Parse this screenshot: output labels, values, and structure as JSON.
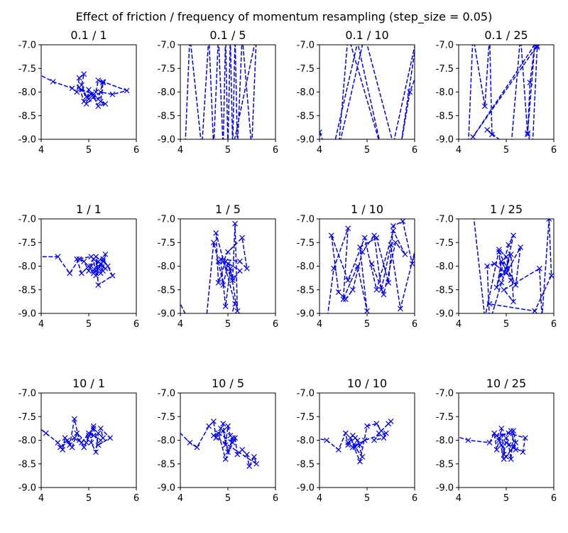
{
  "figure": {
    "title": "Effect of friction / frequency of momentum resampling (step_size = 0.05)"
  },
  "colors": {
    "series": "#0000ff",
    "axes": "#000000",
    "background": "#ffffff"
  },
  "chart_data": [
    {
      "type": "line",
      "title": "0.1 / 1",
      "marker": "x",
      "linestyle": "dashed",
      "xlim": [
        4,
        6
      ],
      "ylim": [
        -9.0,
        -7.0
      ],
      "xticks": [
        "4",
        "5",
        "6"
      ],
      "yticks": [
        "-9.0",
        "-8.5",
        "-8.0",
        "-7.5",
        "-7.0"
      ],
      "x": [
        3.9,
        4.25,
        4.65,
        4.75,
        4.8,
        4.9,
        4.85,
        4.95,
        5.05,
        4.9,
        4.8,
        5.0,
        5.15,
        5.2,
        5.3,
        5.25,
        5.35,
        5.2,
        5.1,
        5.0,
        4.95,
        5.25,
        5.5,
        5.8,
        5.3,
        5.2,
        5.1,
        4.85
      ],
      "y": [
        -7.6,
        -7.78,
        -7.92,
        -8.0,
        -7.7,
        -7.62,
        -7.85,
        -8.1,
        -8.05,
        -8.2,
        -7.9,
        -8.15,
        -8.0,
        -7.75,
        -7.8,
        -8.2,
        -8.25,
        -8.3,
        -8.1,
        -7.95,
        -8.25,
        -8.0,
        -8.05,
        -7.97,
        -7.78,
        -8.15,
        -8.05,
        -7.95
      ]
    },
    {
      "type": "line",
      "title": "0.1 / 5",
      "marker": "x",
      "linestyle": "dashed",
      "xlim": [
        4,
        6
      ],
      "ylim": [
        -9.0,
        -7.0
      ],
      "xticks": [
        "4",
        "5",
        "6"
      ],
      "yticks": [
        "-9.0",
        "-8.5",
        "-8.0",
        "-7.5",
        "-7.0"
      ],
      "x": [
        4.1,
        4.2,
        4.45,
        4.6,
        4.7,
        4.8,
        4.9,
        4.95,
        5.0,
        5.05,
        5.1,
        5.15,
        5.2,
        5.3,
        5.5,
        5.6,
        5.1
      ],
      "y": [
        -9.2,
        -6.8,
        -9.2,
        -6.8,
        -9.2,
        -6.8,
        -9.2,
        -6.8,
        -9.2,
        -6.8,
        -9.2,
        -6.8,
        -9.2,
        -6.8,
        -9.2,
        -6.8,
        -9.2
      ]
    },
    {
      "type": "line",
      "title": "0.1 / 10",
      "marker": "x",
      "linestyle": "dashed",
      "xlim": [
        4,
        6
      ],
      "ylim": [
        -9.0,
        -7.0
      ],
      "xticks": [
        "4",
        "5",
        "6"
      ],
      "yticks": [
        "-9.0",
        "-8.5",
        "-8.0",
        "-7.5",
        "-7.0"
      ],
      "x": [
        4.0,
        4.1,
        4.3,
        4.8,
        5.3,
        4.6,
        4.4,
        4.95,
        5.55,
        6.05,
        5.7,
        5.9,
        6.3
      ],
      "y": [
        -8.85,
        -9.1,
        -9.15,
        -6.95,
        -9.2,
        -6.8,
        -9.2,
        -6.8,
        -9.1,
        -6.8,
        -9.2,
        -8.0,
        -6.9
      ]
    },
    {
      "type": "line",
      "title": "0.1 / 25",
      "marker": "x",
      "linestyle": "dashed",
      "xlim": [
        4,
        6
      ],
      "ylim": [
        -9.0,
        -7.0
      ],
      "xticks": [
        "4",
        "5",
        "6"
      ],
      "yticks": [
        "-9.0",
        "-8.5",
        "-8.0",
        "-7.5",
        "-7.0"
      ],
      "x": [
        4.2,
        4.3,
        4.55,
        4.65,
        4.7,
        4.6,
        5.1,
        5.3,
        5.45,
        5.5,
        5.6,
        5.65,
        5.55,
        5.45,
        5.6,
        4.3,
        5.65
      ],
      "y": [
        -9.2,
        -6.8,
        -8.3,
        -6.8,
        -8.9,
        -8.8,
        -9.2,
        -6.8,
        -8.9,
        -7.8,
        -7.0,
        -7.05,
        -9.2,
        -8.87,
        -7.0,
        -8.95,
        -7.02
      ]
    },
    {
      "type": "line",
      "title": "1 / 1",
      "marker": "x",
      "linestyle": "dashed",
      "xlim": [
        4,
        6
      ],
      "ylim": [
        -9.0,
        -7.0
      ],
      "xticks": [
        "4",
        "5",
        "6"
      ],
      "yticks": [
        "-9.0",
        "-8.5",
        "-8.0",
        "-7.5",
        "-7.0"
      ],
      "x": [
        3.9,
        4.35,
        4.6,
        4.8,
        4.9,
        5.0,
        5.05,
        5.1,
        5.15,
        5.2,
        5.25,
        5.3,
        5.35,
        5.2,
        5.1,
        5.25,
        5.3,
        5.4,
        5.5,
        5.2,
        5.15,
        5.3,
        5.2,
        5.1,
        5.0,
        4.85,
        4.75,
        5.05,
        5.35,
        5.25,
        5.2
      ],
      "y": [
        -7.8,
        -7.8,
        -8.15,
        -7.85,
        -7.9,
        -8.1,
        -8.0,
        -7.85,
        -8.2,
        -8.05,
        -7.95,
        -8.1,
        -7.75,
        -7.9,
        -8.1,
        -8.15,
        -7.85,
        -8.0,
        -8.2,
        -8.4,
        -7.8,
        -7.9,
        -8.05,
        -8.15,
        -8.0,
        -8.15,
        -7.85,
        -7.8,
        -8.05,
        -7.95,
        -8.0
      ]
    },
    {
      "type": "line",
      "title": "1 / 5",
      "marker": "x",
      "linestyle": "dashed",
      "xlim": [
        4,
        6
      ],
      "ylim": [
        -9.0,
        -7.0
      ],
      "xticks": [
        "4",
        "5",
        "6"
      ],
      "yticks": [
        "-9.0",
        "-8.5",
        "-8.0",
        "-7.5",
        "-7.0"
      ],
      "x": [
        3.95,
        4.2,
        4.55,
        4.7,
        4.8,
        4.9,
        5.0,
        5.1,
        5.15,
        5.2,
        5.05,
        4.95,
        4.85,
        5.25,
        5.4,
        5.3,
        5.0,
        4.9,
        5.1,
        5.25,
        4.95,
        4.8,
        4.75,
        5.15,
        5.05
      ],
      "y": [
        -8.7,
        -9.2,
        -9.1,
        -7.5,
        -7.9,
        -8.4,
        -7.95,
        -8.25,
        -7.1,
        -8.95,
        -8.05,
        -8.85,
        -7.85,
        -7.9,
        -8.05,
        -7.4,
        -7.7,
        -7.9,
        -8.3,
        -8.1,
        -7.9,
        -8.35,
        -7.3,
        -8.8,
        -9.1
      ]
    },
    {
      "type": "line",
      "title": "1 / 10",
      "marker": "x",
      "linestyle": "dashed",
      "xlim": [
        4,
        6
      ],
      "ylim": [
        -9.0,
        -7.0
      ],
      "xticks": [
        "4",
        "5",
        "6"
      ],
      "yticks": [
        "-9.0",
        "-8.5",
        "-8.0",
        "-7.5",
        "-7.0"
      ],
      "x": [
        4.15,
        4.3,
        4.6,
        4.5,
        4.8,
        5.0,
        4.85,
        5.2,
        5.45,
        5.55,
        5.75,
        5.95,
        6.1,
        5.7,
        5.5,
        5.3,
        5.15,
        4.9,
        4.7,
        4.55,
        4.4,
        4.25,
        4.6,
        4.95,
        5.2,
        5.55,
        5.8,
        5.6,
        5.35,
        5.1
      ],
      "y": [
        -9.2,
        -8.05,
        -7.2,
        -8.7,
        -8.0,
        -8.95,
        -7.6,
        -7.4,
        -8.35,
        -7.15,
        -7.05,
        -7.95,
        -7.3,
        -8.9,
        -7.55,
        -8.5,
        -7.35,
        -7.7,
        -8.5,
        -8.7,
        -8.55,
        -7.35,
        -8.3,
        -7.4,
        -8.5,
        -7.25,
        -7.75,
        -7.5,
        -8.6,
        -7.95
      ]
    },
    {
      "type": "line",
      "title": "1 / 25",
      "marker": "x",
      "linestyle": "dashed",
      "xlim": [
        4,
        6
      ],
      "ylim": [
        -9.0,
        -7.0
      ],
      "xticks": [
        "4",
        "5",
        "6"
      ],
      "yticks": [
        "-9.0",
        "-8.5",
        "-8.0",
        "-7.5",
        "-7.0"
      ],
      "x": [
        4.3,
        4.55,
        4.85,
        5.0,
        5.1,
        4.9,
        4.8,
        5.05,
        5.15,
        5.0,
        4.9,
        4.85,
        5.2,
        5.3,
        5.0,
        4.75,
        4.6,
        4.65,
        4.9,
        5.1,
        5.15,
        4.95,
        5.7,
        5.75,
        5.9,
        5.95,
        5.6,
        4.65
      ],
      "y": [
        -6.8,
        -9.1,
        -7.65,
        -7.8,
        -8.3,
        -7.9,
        -8.45,
        -7.55,
        -7.35,
        -8.05,
        -8.2,
        -7.7,
        -8.4,
        -7.6,
        -8.15,
        -7.95,
        -8.0,
        -9.2,
        -8.35,
        -7.75,
        -8.75,
        -8.5,
        -8.05,
        -9.1,
        -7.0,
        -8.2,
        -8.95,
        -8.8
      ]
    },
    {
      "type": "line",
      "title": "10 / 1",
      "marker": "x",
      "linestyle": "dashed",
      "xlim": [
        4,
        6
      ],
      "ylim": [
        -9.0,
        -7.0
      ],
      "xticks": [
        "4",
        "5",
        "6"
      ],
      "yticks": [
        "-9.0",
        "-8.5",
        "-8.0",
        "-7.5",
        "-7.0"
      ],
      "x": [
        3.9,
        4.1,
        4.35,
        4.45,
        4.5,
        4.6,
        4.7,
        4.8,
        4.9,
        5.0,
        5.1,
        5.05,
        5.15,
        5.2,
        5.3,
        5.25,
        5.45,
        5.2,
        5.1,
        4.95,
        4.75,
        4.65,
        4.55,
        4.4,
        4.7,
        4.85,
        5.0,
        5.1,
        5.25
      ],
      "y": [
        -7.7,
        -7.85,
        -8.05,
        -8.2,
        -7.95,
        -8.1,
        -7.55,
        -8.0,
        -8.15,
        -7.9,
        -7.75,
        -8.05,
        -8.25,
        -7.85,
        -7.95,
        -7.75,
        -7.95,
        -8.1,
        -7.7,
        -8.05,
        -7.85,
        -8.15,
        -8.0,
        -8.15,
        -7.95,
        -8.05,
        -7.85,
        -7.9,
        -8.0
      ]
    },
    {
      "type": "line",
      "title": "10 / 5",
      "marker": "x",
      "linestyle": "dashed",
      "xlim": [
        4,
        6
      ],
      "ylim": [
        -9.0,
        -7.0
      ],
      "xticks": [
        "4",
        "5",
        "6"
      ],
      "yticks": [
        "-9.0",
        "-8.5",
        "-8.0",
        "-7.5",
        "-7.0"
      ],
      "x": [
        3.9,
        4.2,
        4.35,
        4.6,
        4.7,
        4.75,
        4.85,
        4.9,
        4.95,
        5.0,
        5.05,
        5.1,
        4.8,
        4.95,
        5.15,
        5.2,
        5.3,
        5.4,
        5.45,
        5.55,
        5.6,
        4.7,
        4.9,
        5.0,
        5.1
      ],
      "y": [
        -7.75,
        -8.05,
        -8.15,
        -7.7,
        -7.6,
        -7.95,
        -7.75,
        -7.65,
        -8.1,
        -7.7,
        -7.9,
        -8.05,
        -7.85,
        -8.4,
        -7.95,
        -8.3,
        -8.2,
        -8.3,
        -8.55,
        -8.35,
        -8.5,
        -7.9,
        -7.8,
        -8.25,
        -7.95
      ]
    },
    {
      "type": "line",
      "title": "10 / 10",
      "marker": "x",
      "linestyle": "dashed",
      "xlim": [
        4,
        6
      ],
      "ylim": [
        -9.0,
        -7.0
      ],
      "xticks": [
        "4",
        "5",
        "6"
      ],
      "yticks": [
        "-9.0",
        "-8.5",
        "-8.0",
        "-7.5",
        "-7.0"
      ],
      "x": [
        3.9,
        4.15,
        4.4,
        4.55,
        4.6,
        4.7,
        4.8,
        4.9,
        4.75,
        4.65,
        4.85,
        5.0,
        5.2,
        5.3,
        5.45,
        5.5,
        5.25,
        5.15,
        5.35,
        5.4,
        4.95,
        4.7,
        4.6,
        4.85,
        4.75
      ],
      "y": [
        -7.95,
        -8.0,
        -8.2,
        -7.85,
        -8.1,
        -7.9,
        -8.0,
        -8.35,
        -8.15,
        -7.95,
        -8.45,
        -7.7,
        -7.65,
        -7.8,
        -7.65,
        -7.6,
        -7.85,
        -8.0,
        -7.95,
        -7.85,
        -8.0,
        -8.15,
        -8.05,
        -8.1,
        -7.95
      ]
    },
    {
      "type": "line",
      "title": "10 / 25",
      "marker": "x",
      "linestyle": "dashed",
      "xlim": [
        4,
        6
      ],
      "ylim": [
        -9.0,
        -7.0
      ],
      "xticks": [
        "4",
        "5",
        "6"
      ],
      "yticks": [
        "-9.0",
        "-8.5",
        "-8.0",
        "-7.5",
        "-7.0"
      ],
      "x": [
        3.9,
        4.2,
        4.65,
        4.75,
        4.8,
        4.85,
        4.9,
        4.95,
        5.0,
        5.05,
        5.1,
        5.15,
        5.2,
        5.0,
        4.9,
        4.8,
        5.05,
        5.4,
        5.35,
        5.15,
        4.95,
        4.85,
        5.1,
        5.2,
        5.0
      ],
      "y": [
        -7.9,
        -8.0,
        -8.05,
        -7.85,
        -8.2,
        -8.0,
        -7.75,
        -8.3,
        -7.95,
        -8.1,
        -8.4,
        -7.8,
        -8.05,
        -8.35,
        -8.1,
        -7.9,
        -7.85,
        -7.95,
        -8.25,
        -8.15,
        -8.4,
        -7.95,
        -7.8,
        -8.2,
        -8.05
      ]
    }
  ]
}
